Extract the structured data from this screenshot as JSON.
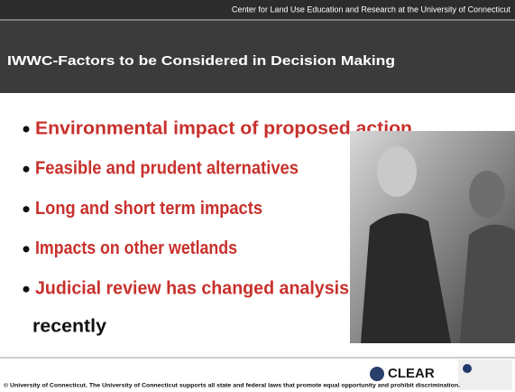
{
  "header": {
    "org": "Center for Land Use Education and Research at the University of Connecticut",
    "title": "IWWC-Factors to be Considered in Decision Making"
  },
  "bullets": [
    "Environmental impact of proposed action",
    "Feasible and prudent alternatives",
    "Long and short term impacts",
    "Impacts on other wetlands",
    "Judicial review has changed analysis"
  ],
  "continuation": "recently",
  "footer": {
    "text": "© University of Connecticut. The University of Connecticut supports all state and federal laws that promote equal opportunity and prohibit discrimination.",
    "logo": "CLEAR"
  }
}
